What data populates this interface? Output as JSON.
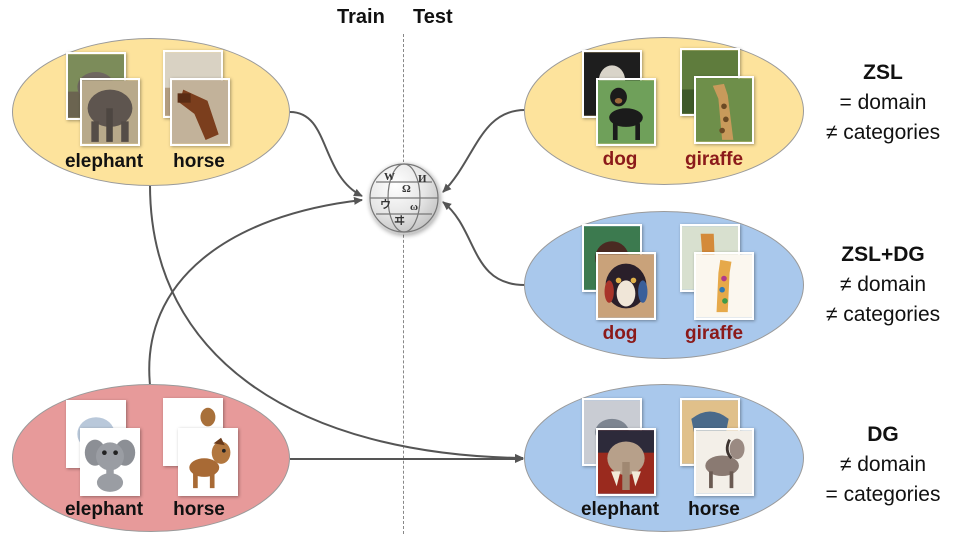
{
  "header": {
    "train": "Train",
    "test": "Test"
  },
  "center_icon": "wikipedia-globe-icon",
  "colors": {
    "yellow": "#fde39c",
    "blue": "#a9c8ec",
    "pink": "#e79a9a",
    "red_label": "#8b1a1a",
    "arrow": "#555555"
  },
  "train_real": {
    "labels": [
      "elephant",
      "horse"
    ]
  },
  "train_cartoon": {
    "labels": [
      "elephant",
      "horse"
    ]
  },
  "test_zsl": {
    "labels": [
      "dog",
      "giraffe"
    ],
    "title": "ZSL",
    "line1": "= domain",
    "line2": "≠ categories"
  },
  "test_zsldg": {
    "labels": [
      "dog",
      "giraffe"
    ],
    "title": "ZSL+DG",
    "line1": "≠ domain",
    "line2": "≠ categories"
  },
  "test_dg": {
    "labels": [
      "elephant",
      "horse"
    ],
    "title": "DG",
    "line1": "≠ domain",
    "line2": "= categories"
  }
}
